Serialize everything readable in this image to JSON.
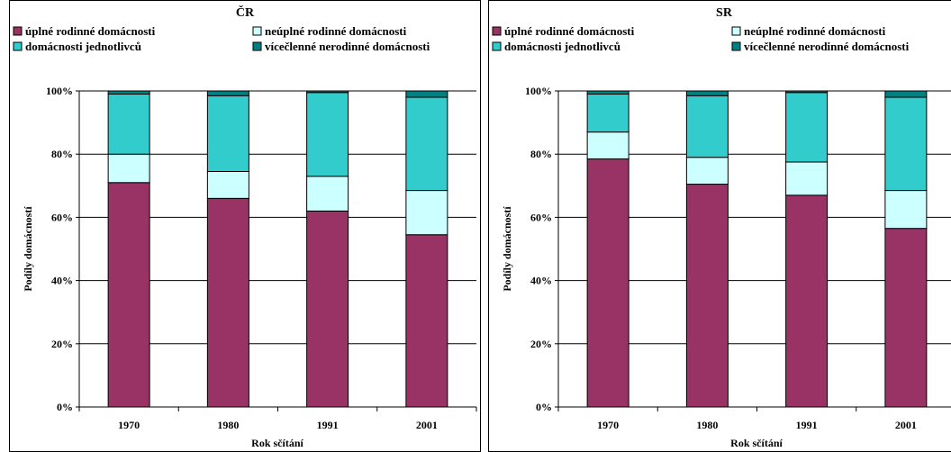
{
  "chart_data": [
    {
      "type": "bar",
      "stacked": true,
      "title": "ČR",
      "xlabel": "Rok sčítání",
      "ylabel": "Podíly domácností",
      "categories": [
        "1970",
        "1980",
        "1991",
        "2001"
      ],
      "ylim": [
        0,
        100
      ],
      "yticks": [
        "0%",
        "20%",
        "40%",
        "60%",
        "80%",
        "100%"
      ],
      "grid": true,
      "legend": "top",
      "series": [
        {
          "name": "úplné rodinné domácnosti",
          "color": "#993366",
          "values": [
            71,
            66,
            62,
            54.5
          ]
        },
        {
          "name": "neúplné rodinné domácnosti",
          "color": "#CCFFFF",
          "values": [
            9,
            8.5,
            11,
            14
          ]
        },
        {
          "name": "domácnosti jednotlivců",
          "color": "#33CCCC",
          "values": [
            19,
            24,
            26.5,
            29.5
          ]
        },
        {
          "name": "vícečlenné nerodinné domácnosti",
          "color": "#008080",
          "values": [
            1,
            1.5,
            0.5,
            2
          ]
        }
      ]
    },
    {
      "type": "bar",
      "stacked": true,
      "title": "SR",
      "xlabel": "Rok sčítání",
      "ylabel": "Podíly domácností",
      "categories": [
        "1970",
        "1980",
        "1991",
        "2001"
      ],
      "ylim": [
        0,
        100
      ],
      "yticks": [
        "0%",
        "20%",
        "40%",
        "60%",
        "80%",
        "100%"
      ],
      "grid": true,
      "legend": "top",
      "series": [
        {
          "name": "úplné rodinné domácnosti",
          "color": "#993366",
          "values": [
            78.5,
            70.5,
            67,
            56.5
          ]
        },
        {
          "name": "neúplné rodinné domácnosti",
          "color": "#CCFFFF",
          "values": [
            8.5,
            8.5,
            10.5,
            12
          ]
        },
        {
          "name": "domácnosti jednotlivců",
          "color": "#33CCCC",
          "values": [
            12,
            19.5,
            22,
            29.5
          ]
        },
        {
          "name": "vícečlenné nerodinné domácnosti",
          "color": "#008080",
          "values": [
            1,
            1.5,
            0.5,
            2
          ]
        }
      ]
    }
  ]
}
